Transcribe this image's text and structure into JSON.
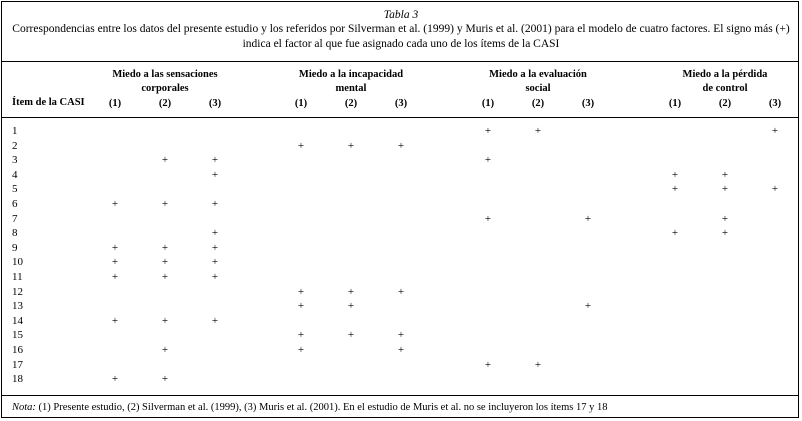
{
  "caption": {
    "title": "Tabla 3",
    "line1": "Correspondencias entre los datos del presente estudio y los referidos por Silverman et al. (1999) y Muris et al. (2001) para el modelo de cuatro factores. El signo más (+)",
    "line2": "indica el factor al que fue asignado cada uno de los ítems de la CASI"
  },
  "header": {
    "item_label": "Ítem de la CASI",
    "groups": [
      {
        "line1": "Miedo a las sensaciones",
        "line2": "corporales"
      },
      {
        "line1": "Miedo a la incapacidad",
        "line2": "mental"
      },
      {
        "line1": "Miedo a la evaluación",
        "line2": "social"
      },
      {
        "line1": "Miedo a la pérdida",
        "line2": "de control"
      }
    ],
    "sub_labels": [
      "(1)",
      "(2)",
      "(3)"
    ]
  },
  "table": {
    "mark_symbol": "+",
    "rows": [
      {
        "item": "1",
        "marks": [
          0,
          0,
          0,
          0,
          0,
          0,
          1,
          1,
          0,
          0,
          0,
          1
        ]
      },
      {
        "item": "2",
        "marks": [
          0,
          0,
          0,
          1,
          1,
          1,
          0,
          0,
          0,
          0,
          0,
          0
        ]
      },
      {
        "item": "3",
        "marks": [
          0,
          1,
          1,
          0,
          0,
          0,
          1,
          0,
          0,
          0,
          0,
          0
        ]
      },
      {
        "item": "4",
        "marks": [
          0,
          0,
          1,
          0,
          0,
          0,
          0,
          0,
          0,
          1,
          1,
          0
        ]
      },
      {
        "item": "5",
        "marks": [
          0,
          0,
          0,
          0,
          0,
          0,
          0,
          0,
          0,
          1,
          1,
          1
        ]
      },
      {
        "item": "6",
        "marks": [
          1,
          1,
          1,
          0,
          0,
          0,
          0,
          0,
          0,
          0,
          0,
          0
        ]
      },
      {
        "item": "7",
        "marks": [
          0,
          0,
          0,
          0,
          0,
          0,
          1,
          0,
          1,
          0,
          1,
          0
        ]
      },
      {
        "item": "8",
        "marks": [
          0,
          0,
          1,
          0,
          0,
          0,
          0,
          0,
          0,
          1,
          1,
          0
        ]
      },
      {
        "item": "9",
        "marks": [
          1,
          1,
          1,
          0,
          0,
          0,
          0,
          0,
          0,
          0,
          0,
          0
        ]
      },
      {
        "item": "10",
        "marks": [
          1,
          1,
          1,
          0,
          0,
          0,
          0,
          0,
          0,
          0,
          0,
          0
        ]
      },
      {
        "item": "11",
        "marks": [
          1,
          1,
          1,
          0,
          0,
          0,
          0,
          0,
          0,
          0,
          0,
          0
        ]
      },
      {
        "item": "12",
        "marks": [
          0,
          0,
          0,
          1,
          1,
          1,
          0,
          0,
          0,
          0,
          0,
          0
        ]
      },
      {
        "item": "13",
        "marks": [
          0,
          0,
          0,
          1,
          1,
          0,
          0,
          0,
          1,
          0,
          0,
          0
        ]
      },
      {
        "item": "14",
        "marks": [
          1,
          1,
          1,
          0,
          0,
          0,
          0,
          0,
          0,
          0,
          0,
          0
        ]
      },
      {
        "item": "15",
        "marks": [
          0,
          0,
          0,
          1,
          1,
          1,
          0,
          0,
          0,
          0,
          0,
          0
        ]
      },
      {
        "item": "16",
        "marks": [
          0,
          1,
          0,
          1,
          0,
          1,
          0,
          0,
          0,
          0,
          0,
          0
        ]
      },
      {
        "item": "17",
        "marks": [
          0,
          0,
          0,
          0,
          0,
          0,
          1,
          1,
          0,
          0,
          0,
          0
        ]
      },
      {
        "item": "18",
        "marks": [
          1,
          1,
          0,
          0,
          0,
          0,
          0,
          0,
          0,
          0,
          0,
          0
        ]
      }
    ]
  },
  "note": {
    "label": "Nota:",
    "text": " (1) Presente estudio, (2) Silverman et al. (1999), (3) Muris et al. (2001). En el estudio de Muris et al. no se incluyeron los ítems 17 y 18"
  }
}
